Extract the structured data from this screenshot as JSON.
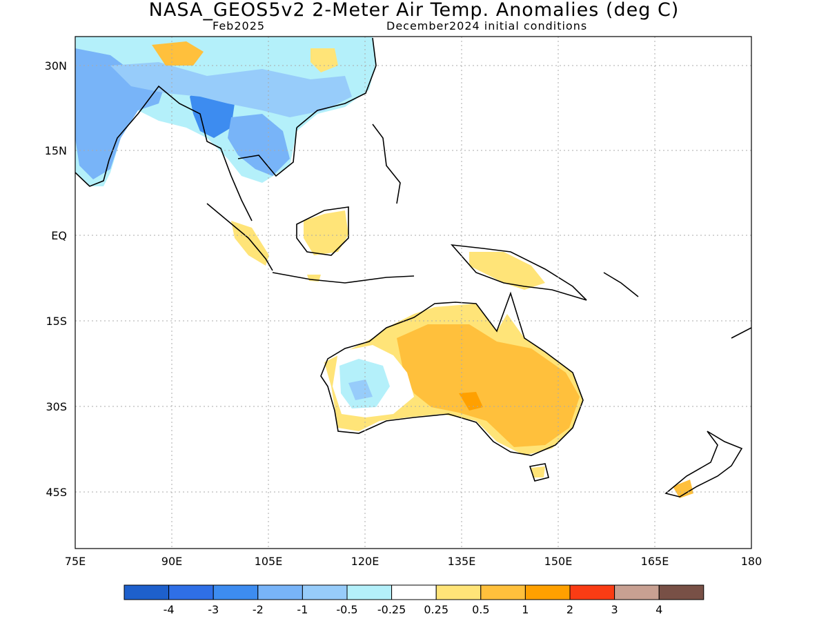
{
  "title": "NASA_GEOS5v2 2-Meter Air Temp. Anomalies (deg C)",
  "valid_month": "Feb2025",
  "init_conditions": "December2024 initial conditions",
  "map": {
    "lon_labels": [
      "75E",
      "90E",
      "105E",
      "120E",
      "135E",
      "150E",
      "165E",
      "180"
    ],
    "lat_labels": [
      "30N",
      "15N",
      "EQ",
      "15S",
      "30S",
      "45S"
    ]
  },
  "colorbar": {
    "colors": [
      "#1e60cc",
      "#2f6fe6",
      "#3d8cf0",
      "#78b4f8",
      "#97ccfa",
      "#b4f0fa",
      "#ffffff",
      "#ffe478",
      "#ffc03c",
      "#ffa000",
      "#fa3c14",
      "#c8a092",
      "#785046"
    ],
    "labels": [
      "-4",
      "-3",
      "-2",
      "-1",
      "-0.5",
      "-0.25",
      "0.25",
      "0.5",
      "1",
      "2",
      "3",
      "4"
    ]
  }
}
